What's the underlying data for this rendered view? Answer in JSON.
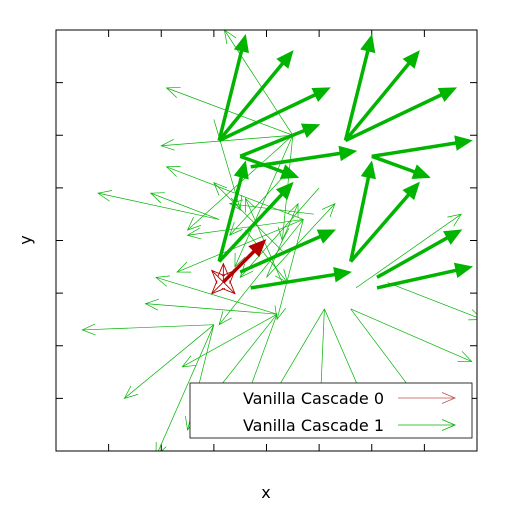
{
  "chart_data": {
    "type": "vector-field",
    "title": "",
    "xlabel": "x",
    "ylabel": "y",
    "xlim": [
      0,
      8
    ],
    "ylim": [
      0,
      8
    ],
    "grid": false,
    "ticks": {
      "x_positions": [
        1,
        2,
        3,
        4,
        5,
        6,
        7
      ],
      "y_positions": [
        1,
        2,
        3,
        4,
        5,
        6,
        7
      ],
      "tick_labels_shown": false
    },
    "legend": {
      "placement": "bottom-right",
      "entries": [
        {
          "label": "Vanilla Cascade 0",
          "color": "#c0504d"
        },
        {
          "label": "Vanilla Cascade 1",
          "color": "#00b400"
        }
      ]
    },
    "series": [
      {
        "name": "Vanilla Cascade 0",
        "color": "#b40000",
        "vectors": [
          {
            "x": 3.18,
            "y": 3.21,
            "dx": -0.22,
            "dy": 0.22,
            "w": 0.9
          },
          {
            "x": 3.18,
            "y": 3.21,
            "dx": 0.22,
            "dy": 0.22,
            "w": 0.9
          },
          {
            "x": 3.18,
            "y": 3.21,
            "dx": 0.22,
            "dy": -0.22,
            "w": 0.9
          },
          {
            "x": 3.18,
            "y": 3.21,
            "dx": -0.22,
            "dy": -0.22,
            "w": 0.9
          },
          {
            "x": 3.18,
            "y": 3.21,
            "dx": 0.0,
            "dy": 0.35,
            "w": 0.9
          },
          {
            "x": 3.18,
            "y": 3.21,
            "dx": 0.8,
            "dy": 0.8,
            "w": 3.5
          }
        ]
      },
      {
        "name": "Vanilla Cascade 1",
        "color": "#00b400",
        "vectors": [
          {
            "x": 4.5,
            "y": 6.0,
            "dx": -2.4,
            "dy": 0.9,
            "w": 0.7
          },
          {
            "x": 4.5,
            "y": 6.0,
            "dx": -1.3,
            "dy": 2.0,
            "w": 0.7
          },
          {
            "x": 4.5,
            "y": 6.0,
            "dx": -2.5,
            "dy": -0.2,
            "w": 0.7
          },
          {
            "x": 4.5,
            "y": 6.0,
            "dx": -2.0,
            "dy": -1.8,
            "w": 0.7
          },
          {
            "x": 4.5,
            "y": 6.0,
            "dx": -0.2,
            "dy": -2.0,
            "w": 0.7
          },
          {
            "x": 4.5,
            "y": 6.0,
            "dx": -1.1,
            "dy": -2.5,
            "w": 0.7
          },
          {
            "x": 4.7,
            "y": 4.4,
            "dx": -2.6,
            "dy": 1.0,
            "w": 0.7
          },
          {
            "x": 4.7,
            "y": 4.4,
            "dx": -2.2,
            "dy": -0.3,
            "w": 0.7
          },
          {
            "x": 4.7,
            "y": 4.4,
            "dx": -2.4,
            "dy": -1.0,
            "w": 0.7
          },
          {
            "x": 4.7,
            "y": 4.4,
            "dx": -1.6,
            "dy": -2.0,
            "w": 0.7
          },
          {
            "x": 4.7,
            "y": 4.4,
            "dx": -0.5,
            "dy": -1.9,
            "w": 0.7
          },
          {
            "x": 4.2,
            "y": 2.6,
            "dx": -2.3,
            "dy": 0.7,
            "w": 0.7
          },
          {
            "x": 4.2,
            "y": 2.6,
            "dx": -2.5,
            "dy": 0.2,
            "w": 0.7
          },
          {
            "x": 4.2,
            "y": 2.6,
            "dx": -1.8,
            "dy": -1.0,
            "w": 0.7
          },
          {
            "x": 4.2,
            "y": 2.6,
            "dx": -1.5,
            "dy": -1.9,
            "w": 0.7
          },
          {
            "x": 4.2,
            "y": 2.6,
            "dx": -0.8,
            "dy": -2.2,
            "w": 0.7
          },
          {
            "x": 3.0,
            "y": 2.4,
            "dx": -2.5,
            "dy": -0.1,
            "w": 0.7
          },
          {
            "x": 3.0,
            "y": 2.4,
            "dx": -1.7,
            "dy": -1.4,
            "w": 0.7
          },
          {
            "x": 3.0,
            "y": 2.4,
            "dx": -1.1,
            "dy": -2.5,
            "w": 0.7
          },
          {
            "x": 3.0,
            "y": 2.4,
            "dx": -0.5,
            "dy": -2.0,
            "w": 0.7
          },
          {
            "x": 3.1,
            "y": 4.4,
            "dx": -2.3,
            "dy": 0.5,
            "w": 0.7
          },
          {
            "x": 3.1,
            "y": 4.4,
            "dx": -1.3,
            "dy": 0.5,
            "w": 0.7
          },
          {
            "x": 5.0,
            "y": 5.0,
            "dx": -1.5,
            "dy": -1.7,
            "w": 0.7
          },
          {
            "x": 4.4,
            "y": 5.3,
            "dx": -1.1,
            "dy": -1.2,
            "w": 0.7
          },
          {
            "x": 4.9,
            "y": 4.5,
            "dx": -1.6,
            "dy": 0.2,
            "w": 0.7
          },
          {
            "x": 5.1,
            "y": 2.7,
            "dx": -1.3,
            "dy": -2.2,
            "w": 0.7
          },
          {
            "x": 5.1,
            "y": 2.7,
            "dx": -0.1,
            "dy": -2.3,
            "w": 0.7
          },
          {
            "x": 5.1,
            "y": 2.7,
            "dx": 1.0,
            "dy": -2.3,
            "w": 0.7
          },
          {
            "x": 5.6,
            "y": 2.7,
            "dx": 2.3,
            "dy": -1.0,
            "w": 0.7
          },
          {
            "x": 5.6,
            "y": 2.7,
            "dx": 1.5,
            "dy": -2.0,
            "w": 0.7
          },
          {
            "x": 6.3,
            "y": 3.2,
            "dx": 1.8,
            "dy": -0.7,
            "w": 0.7
          },
          {
            "x": 5.7,
            "y": 3.1,
            "dx": 2.0,
            "dy": 1.4,
            "w": 0.7
          },
          {
            "x": 4.0,
            "y": 3.3,
            "dx": 1.3,
            "dy": 1.4,
            "w": 0.7
          },
          {
            "x": 4.0,
            "y": 3.3,
            "dx": 0.6,
            "dy": 1.4,
            "w": 0.7
          },
          {
            "x": 4.3,
            "y": 3.8,
            "dx": -1.3,
            "dy": 1.3,
            "w": 0.7
          },
          {
            "x": 3.6,
            "y": 4.2,
            "dx": 0.8,
            "dy": -1.0,
            "w": 0.7
          },
          {
            "x": 3.0,
            "y": 6.3,
            "dx": 0.5,
            "dy": -1.7,
            "w": 0.7
          },
          {
            "x": 4.3,
            "y": 3.2,
            "dx": -0.7,
            "dy": 1.6,
            "w": 0.7
          },
          {
            "x": 3.1,
            "y": 5.9,
            "dx": 0.5,
            "dy": 2.0,
            "w": 3.5
          },
          {
            "x": 3.1,
            "y": 5.9,
            "dx": 1.4,
            "dy": 1.7,
            "w": 3.5
          },
          {
            "x": 3.1,
            "y": 5.9,
            "dx": 2.1,
            "dy": 1.0,
            "w": 3.5
          },
          {
            "x": 3.5,
            "y": 5.6,
            "dx": 1.5,
            "dy": 0.6,
            "w": 3.5
          },
          {
            "x": 3.5,
            "y": 5.6,
            "dx": 1.1,
            "dy": -0.4,
            "w": 3.5
          },
          {
            "x": 3.7,
            "y": 5.4,
            "dx": 2.0,
            "dy": 0.3,
            "w": 3.5
          },
          {
            "x": 5.5,
            "y": 5.9,
            "dx": 0.5,
            "dy": 2.0,
            "w": 3.5
          },
          {
            "x": 5.5,
            "y": 5.9,
            "dx": 1.4,
            "dy": 1.7,
            "w": 3.5
          },
          {
            "x": 5.5,
            "y": 5.9,
            "dx": 2.1,
            "dy": 1.0,
            "w": 3.5
          },
          {
            "x": 6.0,
            "y": 5.6,
            "dx": 1.1,
            "dy": -0.4,
            "w": 3.5
          },
          {
            "x": 6.0,
            "y": 5.6,
            "dx": 1.9,
            "dy": 0.3,
            "w": 3.5
          },
          {
            "x": 3.1,
            "y": 3.6,
            "dx": 0.5,
            "dy": 1.9,
            "w": 3.5
          },
          {
            "x": 3.1,
            "y": 3.6,
            "dx": 1.4,
            "dy": 1.5,
            "w": 3.5
          },
          {
            "x": 3.5,
            "y": 3.4,
            "dx": 1.8,
            "dy": 0.8,
            "w": 3.5
          },
          {
            "x": 3.7,
            "y": 3.1,
            "dx": 1.9,
            "dy": 0.3,
            "w": 3.5
          },
          {
            "x": 5.6,
            "y": 3.6,
            "dx": 0.4,
            "dy": 1.9,
            "w": 3.5
          },
          {
            "x": 5.6,
            "y": 3.6,
            "dx": 1.3,
            "dy": 1.5,
            "w": 3.5
          },
          {
            "x": 6.1,
            "y": 3.3,
            "dx": 1.6,
            "dy": 0.9,
            "w": 3.5
          },
          {
            "x": 6.1,
            "y": 3.1,
            "dx": 1.8,
            "dy": 0.4,
            "w": 3.5
          }
        ]
      }
    ]
  }
}
